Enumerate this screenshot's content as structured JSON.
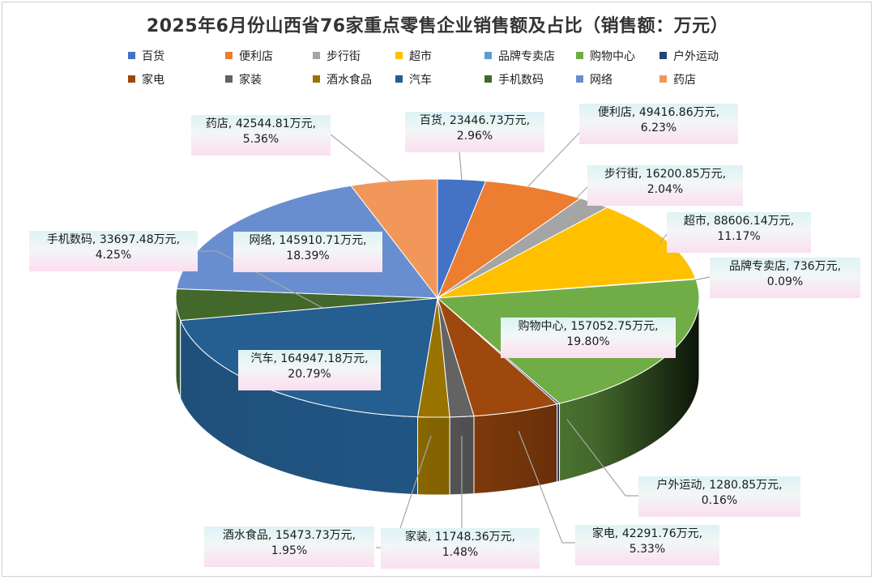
{
  "chart_data": {
    "type": "pie",
    "title": "2025年6月份山西省76家重点零售企业销售额及占比（销售额：万元）",
    "unit": "万元",
    "legend_position": "top",
    "categories": [
      "百货",
      "便利店",
      "步行街",
      "超市",
      "品牌专卖店",
      "购物中心",
      "户外运动",
      "家电",
      "家装",
      "酒水食品",
      "汽车",
      "手机数码",
      "网络",
      "药店"
    ],
    "values": [
      23446.73,
      49416.86,
      16200.85,
      88606.14,
      736,
      157052.75,
      1280.85,
      42291.76,
      11748.36,
      15473.73,
      164947.18,
      33697.48,
      145910.71,
      42544.81
    ],
    "percentages": [
      "2.96%",
      "6.23%",
      "2.04%",
      "11.17%",
      "0.09%",
      "19.80%",
      "0.16%",
      "5.33%",
      "1.48%",
      "1.95%",
      "20.79%",
      "4.25%",
      "18.39%",
      "5.36%"
    ],
    "data_labels": [
      [
        "百货, 23446.73万元,",
        "2.96%"
      ],
      [
        "便利店, 49416.86万元,",
        "6.23%"
      ],
      [
        "步行街, 16200.85万元,",
        "2.04%"
      ],
      [
        "超市, 88606.14万元,",
        "11.17%"
      ],
      [
        "品牌专卖店, 736万元,",
        "0.09%"
      ],
      [
        "购物中心, 157052.75万元,",
        "19.80%"
      ],
      [
        "户外运动, 1280.85万元,",
        "0.16%"
      ],
      [
        "家电, 42291.76万元,",
        "5.33%"
      ],
      [
        "家装, 11748.36万元,",
        "1.48%"
      ],
      [
        "酒水食品, 15473.73万元,",
        "1.95%"
      ],
      [
        "汽车, 164947.18万元,",
        "20.79%"
      ],
      [
        "手机数码, 33697.48万元,",
        "4.25%"
      ],
      [
        "网络, 145910.71万元,",
        "18.39%"
      ],
      [
        "药店, 42544.81万元,",
        "5.36%"
      ]
    ],
    "colors": [
      "#4472c4",
      "#ed7d31",
      "#a5a5a5",
      "#ffc000",
      "#5b9bd5",
      "#70ad47",
      "#264478",
      "#9e480e",
      "#636363",
      "#997300",
      "#255e91",
      "#43682b",
      "#698ed0",
      "#f1975a"
    ]
  }
}
